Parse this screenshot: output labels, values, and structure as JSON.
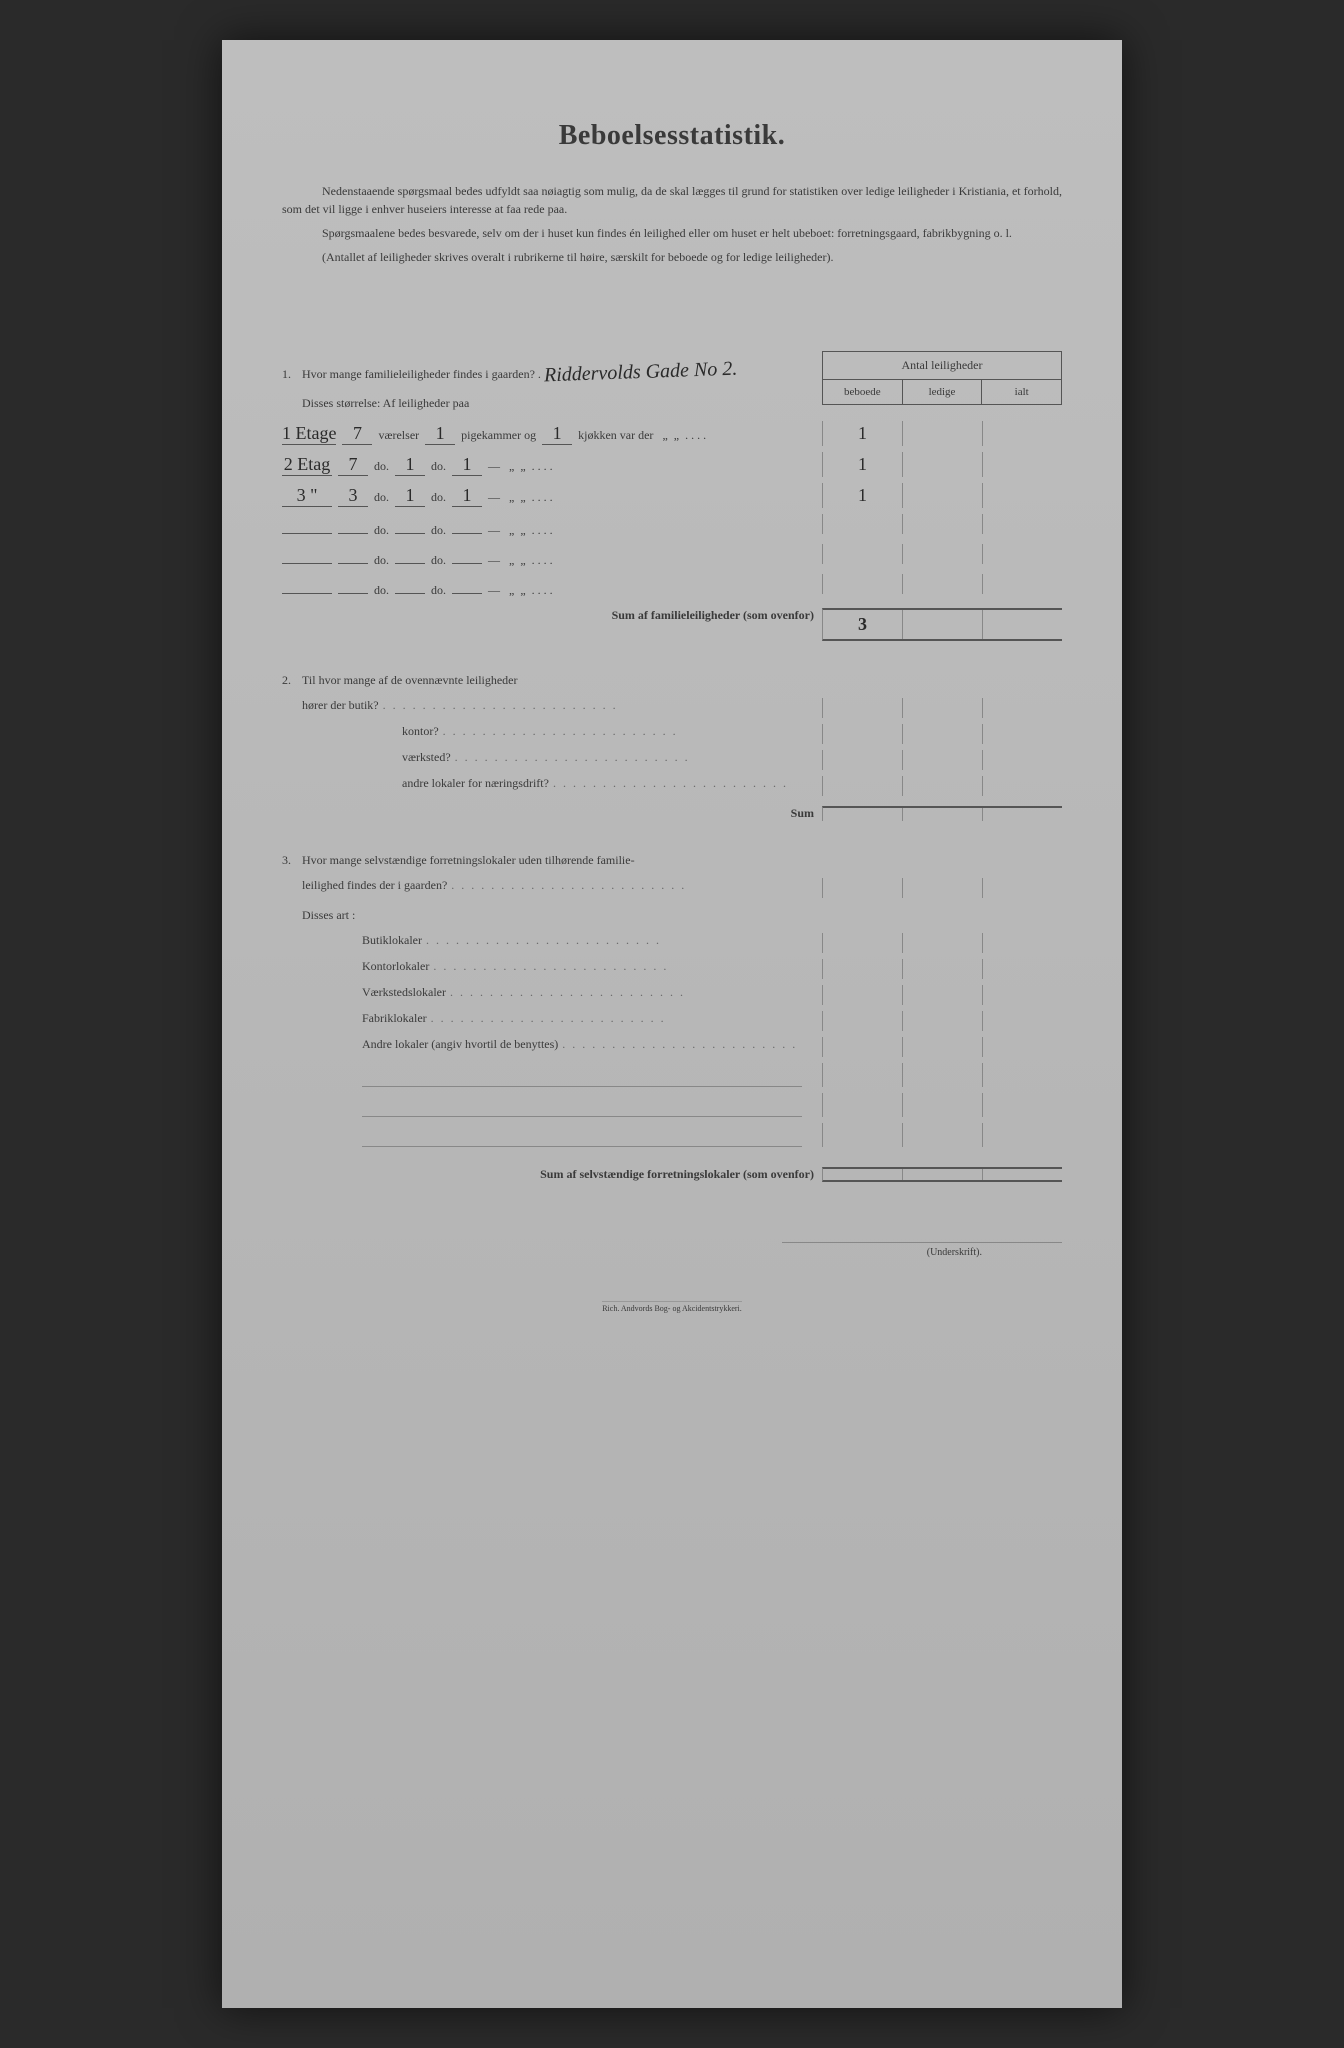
{
  "title": "Beboelsesstatistik.",
  "intro": {
    "p1": "Nedenstaaende spørgsmaal bedes udfyldt saa nøiagtig som mulig, da de skal lægges til grund for statistiken over ledige leiligheder i Kristiania, et forhold, som det vil ligge i enhver huseiers interesse at faa rede paa.",
    "p2": "Spørgsmaalene bedes besvarede, selv om der i huset kun findes én leilighed eller om huset er helt ubeboet: forretningsgaard, fabrikbygning o. l.",
    "p3": "(Antallet af leiligheder skrives overalt i rubrikerne til høire, særskilt for beboede og for ledige leiligheder)."
  },
  "header": {
    "title": "Antal leiligheder",
    "col1": "beboede",
    "col2": "ledige",
    "col3": "ialt"
  },
  "q1": {
    "num": "1.",
    "text": "Hvor mange familieleiligheder findes i gaarden? .",
    "handwritten": "Riddervolds Gade No 2.",
    "sub": "Disses størrelse: Af leiligheder paa",
    "rows": [
      {
        "prefix": "1 Etage",
        "vaer": "7",
        "pige": "1",
        "kjok": "1",
        "label1": "værelser",
        "label2": "pigekammer og",
        "label3": "kjøkken var der",
        "beboede": "1",
        "ledige": "",
        "ialt": ""
      },
      {
        "prefix": "2 Etag",
        "vaer": "7",
        "pige": "1",
        "kjok": "1",
        "label1": "do.",
        "label2": "do.",
        "label3": "—",
        "beboede": "1",
        "ledige": "",
        "ialt": ""
      },
      {
        "prefix": "3 \"",
        "vaer": "3",
        "pige": "1",
        "kjok": "1",
        "label1": "do.",
        "label2": "do.",
        "label3": "—",
        "beboede": "1",
        "ledige": "",
        "ialt": ""
      },
      {
        "prefix": "",
        "vaer": "",
        "pige": "",
        "kjok": "",
        "label1": "do.",
        "label2": "do.",
        "label3": "—",
        "beboede": "",
        "ledige": "",
        "ialt": ""
      },
      {
        "prefix": "",
        "vaer": "",
        "pige": "",
        "kjok": "",
        "label1": "do.",
        "label2": "do.",
        "label3": "—",
        "beboede": "",
        "ledige": "",
        "ialt": ""
      },
      {
        "prefix": "",
        "vaer": "",
        "pige": "",
        "kjok": "",
        "label1": "do.",
        "label2": "do.",
        "label3": "—",
        "beboede": "",
        "ledige": "",
        "ialt": ""
      }
    ],
    "sum_label": "Sum af familieleiligheder (som ovenfor)",
    "sum_beboede": "3",
    "sum_ledige": "",
    "sum_ialt": ""
  },
  "q2": {
    "num": "2.",
    "text": "Til hvor mange af de ovennævnte leiligheder",
    "lines": [
      "hører der butik?",
      "kontor?",
      "værksted?",
      "andre lokaler for næringsdrift?"
    ],
    "sum": "Sum"
  },
  "q3": {
    "num": "3.",
    "text1": "Hvor mange selvstændige forretningslokaler uden tilhørende familie-",
    "text2": "leilighed findes der i gaarden?",
    "sub": "Disses art :",
    "lines": [
      "Butiklokaler",
      "Kontorlokaler",
      "Værkstedslokaler",
      "Fabriklokaler",
      "Andre lokaler (angiv hvortil de benyttes)"
    ],
    "sum_label": "Sum af selvstændige forretningslokaler (som ovenfor)"
  },
  "underskrift": "(Underskrift).",
  "footer": "Rich. Andvords Bog- og Akcidentstrykkeri."
}
